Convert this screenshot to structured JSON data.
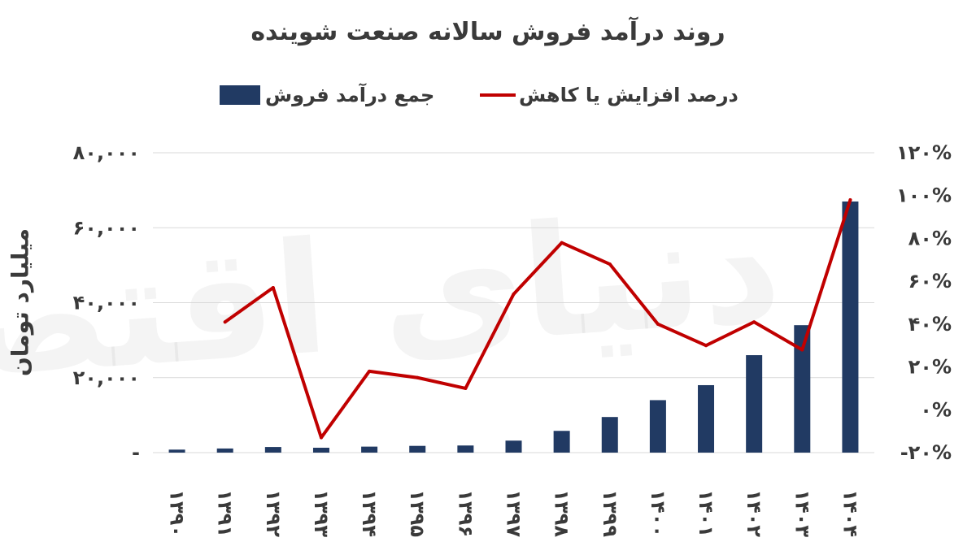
{
  "chart_data": {
    "type": "bar+line",
    "title": "روند درآمد فروش سالانه صنعت شوینده",
    "ylabel_left": "میلیارد تومان",
    "legend": {
      "bar_label": "جمع درآمد فروش",
      "line_label": "درصد افزایش یا کاهش",
      "position": "top"
    },
    "colors": {
      "bar": "#213a63",
      "line": "#c00000",
      "grid": "#d9d9d9",
      "text": "#3a3a3a"
    },
    "watermark": "دنیای اقتصاد",
    "categories": [
      "۱۳۹۰",
      "۱۳۹۱",
      "۱۳۹۲",
      "۱۳۹۳",
      "۱۳۹۴",
      "۱۳۹۵",
      "۱۳۹۶",
      "۱۳۹۷",
      "۱۳۹۸",
      "۱۳۹۹",
      "۱۴۰۰",
      "۱۴۰۱",
      "۱۴۰۲",
      "۱۴۰۳",
      "۱۴۰۴"
    ],
    "left_axis": {
      "ticks": [
        {
          "value": 0,
          "label": "-"
        },
        {
          "value": 20000,
          "label": "۲۰,۰۰۰"
        },
        {
          "value": 40000,
          "label": "۴۰,۰۰۰"
        },
        {
          "value": 60000,
          "label": "۶۰,۰۰۰"
        },
        {
          "value": 80000,
          "label": "۸۰,۰۰۰"
        }
      ],
      "ylim": [
        0,
        80000
      ]
    },
    "right_axis": {
      "ticks": [
        {
          "value": -20,
          "label": "-۲۰%"
        },
        {
          "value": 0,
          "label": "۰%"
        },
        {
          "value": 20,
          "label": "۲۰%"
        },
        {
          "value": 40,
          "label": "۴۰%"
        },
        {
          "value": 60,
          "label": "۶۰%"
        },
        {
          "value": 80,
          "label": "۸۰%"
        },
        {
          "value": 100,
          "label": "۱۰۰%"
        },
        {
          "value": 120,
          "label": "۱۲۰%"
        }
      ],
      "ylim": [
        -20,
        120
      ]
    },
    "series": [
      {
        "name": "جمع درآمد فروش",
        "type": "bar",
        "axis": "left",
        "values": [
          800,
          1100,
          1500,
          1300,
          1600,
          1800,
          1900,
          3200,
          5800,
          9500,
          14000,
          18000,
          26000,
          34000,
          67000
        ]
      },
      {
        "name": "درصد افزایش یا کاهش",
        "type": "line",
        "axis": "right",
        "values": [
          null,
          41,
          57,
          -13,
          18,
          15,
          10,
          54,
          78,
          68,
          40,
          30,
          41,
          28,
          98
        ]
      }
    ],
    "grid": true
  }
}
